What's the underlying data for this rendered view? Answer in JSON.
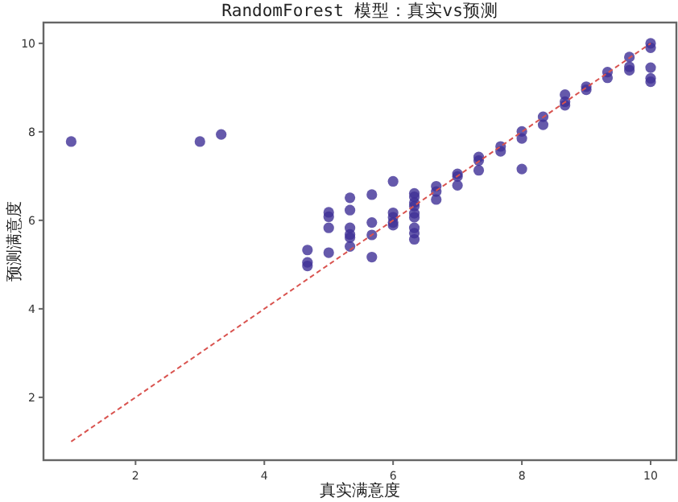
{
  "chart_data": {
    "type": "scatter",
    "title": "RandomForest 模型：真实vs预测",
    "xlabel": "真实满意度",
    "ylabel": "预测满意度",
    "xlim": [
      0.57,
      10.4
    ],
    "ylim": [
      0.58,
      10.47
    ],
    "xticks": [
      2,
      4,
      6,
      8,
      10
    ],
    "yticks": [
      2,
      4,
      6,
      8,
      10
    ],
    "grid": false,
    "series": [
      {
        "color": "#3f2f96",
        "marker": "circle",
        "x": [
          1,
          3,
          3.33,
          4.67,
          4.67,
          4.67,
          5,
          5,
          5,
          5,
          5.33,
          5.33,
          5.33,
          5.33,
          5.33,
          5.33,
          5.67,
          5.67,
          5.67,
          5.67,
          6,
          6,
          6,
          6,
          6,
          6.33,
          6.33,
          6.33,
          6.33,
          6.33,
          6.33,
          6.33,
          6.33,
          6.33,
          6.67,
          6.67,
          6.67,
          7,
          7,
          7,
          7.33,
          7.33,
          7.33,
          7.67,
          7.67,
          8,
          8,
          8,
          8.33,
          8.33,
          8.67,
          8.67,
          8.67,
          9,
          9,
          9.33,
          9.33,
          9.67,
          9.67,
          9.67,
          10,
          10,
          10,
          10,
          10
        ],
        "values": [
          7.78,
          7.78,
          7.94,
          5.33,
          5.05,
          4.97,
          6.18,
          6.08,
          5.83,
          5.27,
          6.51,
          6.23,
          5.83,
          5.68,
          5.61,
          5.41,
          6.58,
          5.95,
          5.67,
          5.17,
          6.88,
          6.17,
          6.07,
          5.95,
          5.89,
          6.61,
          6.53,
          6.4,
          6.32,
          6.16,
          6.07,
          5.83,
          5.71,
          5.57,
          6.77,
          6.65,
          6.47,
          7.05,
          6.99,
          6.79,
          7.43,
          7.35,
          7.13,
          7.67,
          7.56,
          8.01,
          7.85,
          7.16,
          8.34,
          8.16,
          8.84,
          8.68,
          8.6,
          9.02,
          8.95,
          9.35,
          9.22,
          9.69,
          9.47,
          9.39,
          10,
          9.9,
          9.45,
          9.21,
          9.13
        ]
      },
      {
        "type": "line",
        "color": "#d9534f",
        "line_style": "dashed",
        "marker": "none",
        "x": [
          1,
          10
        ],
        "values": [
          1,
          10
        ]
      }
    ]
  }
}
